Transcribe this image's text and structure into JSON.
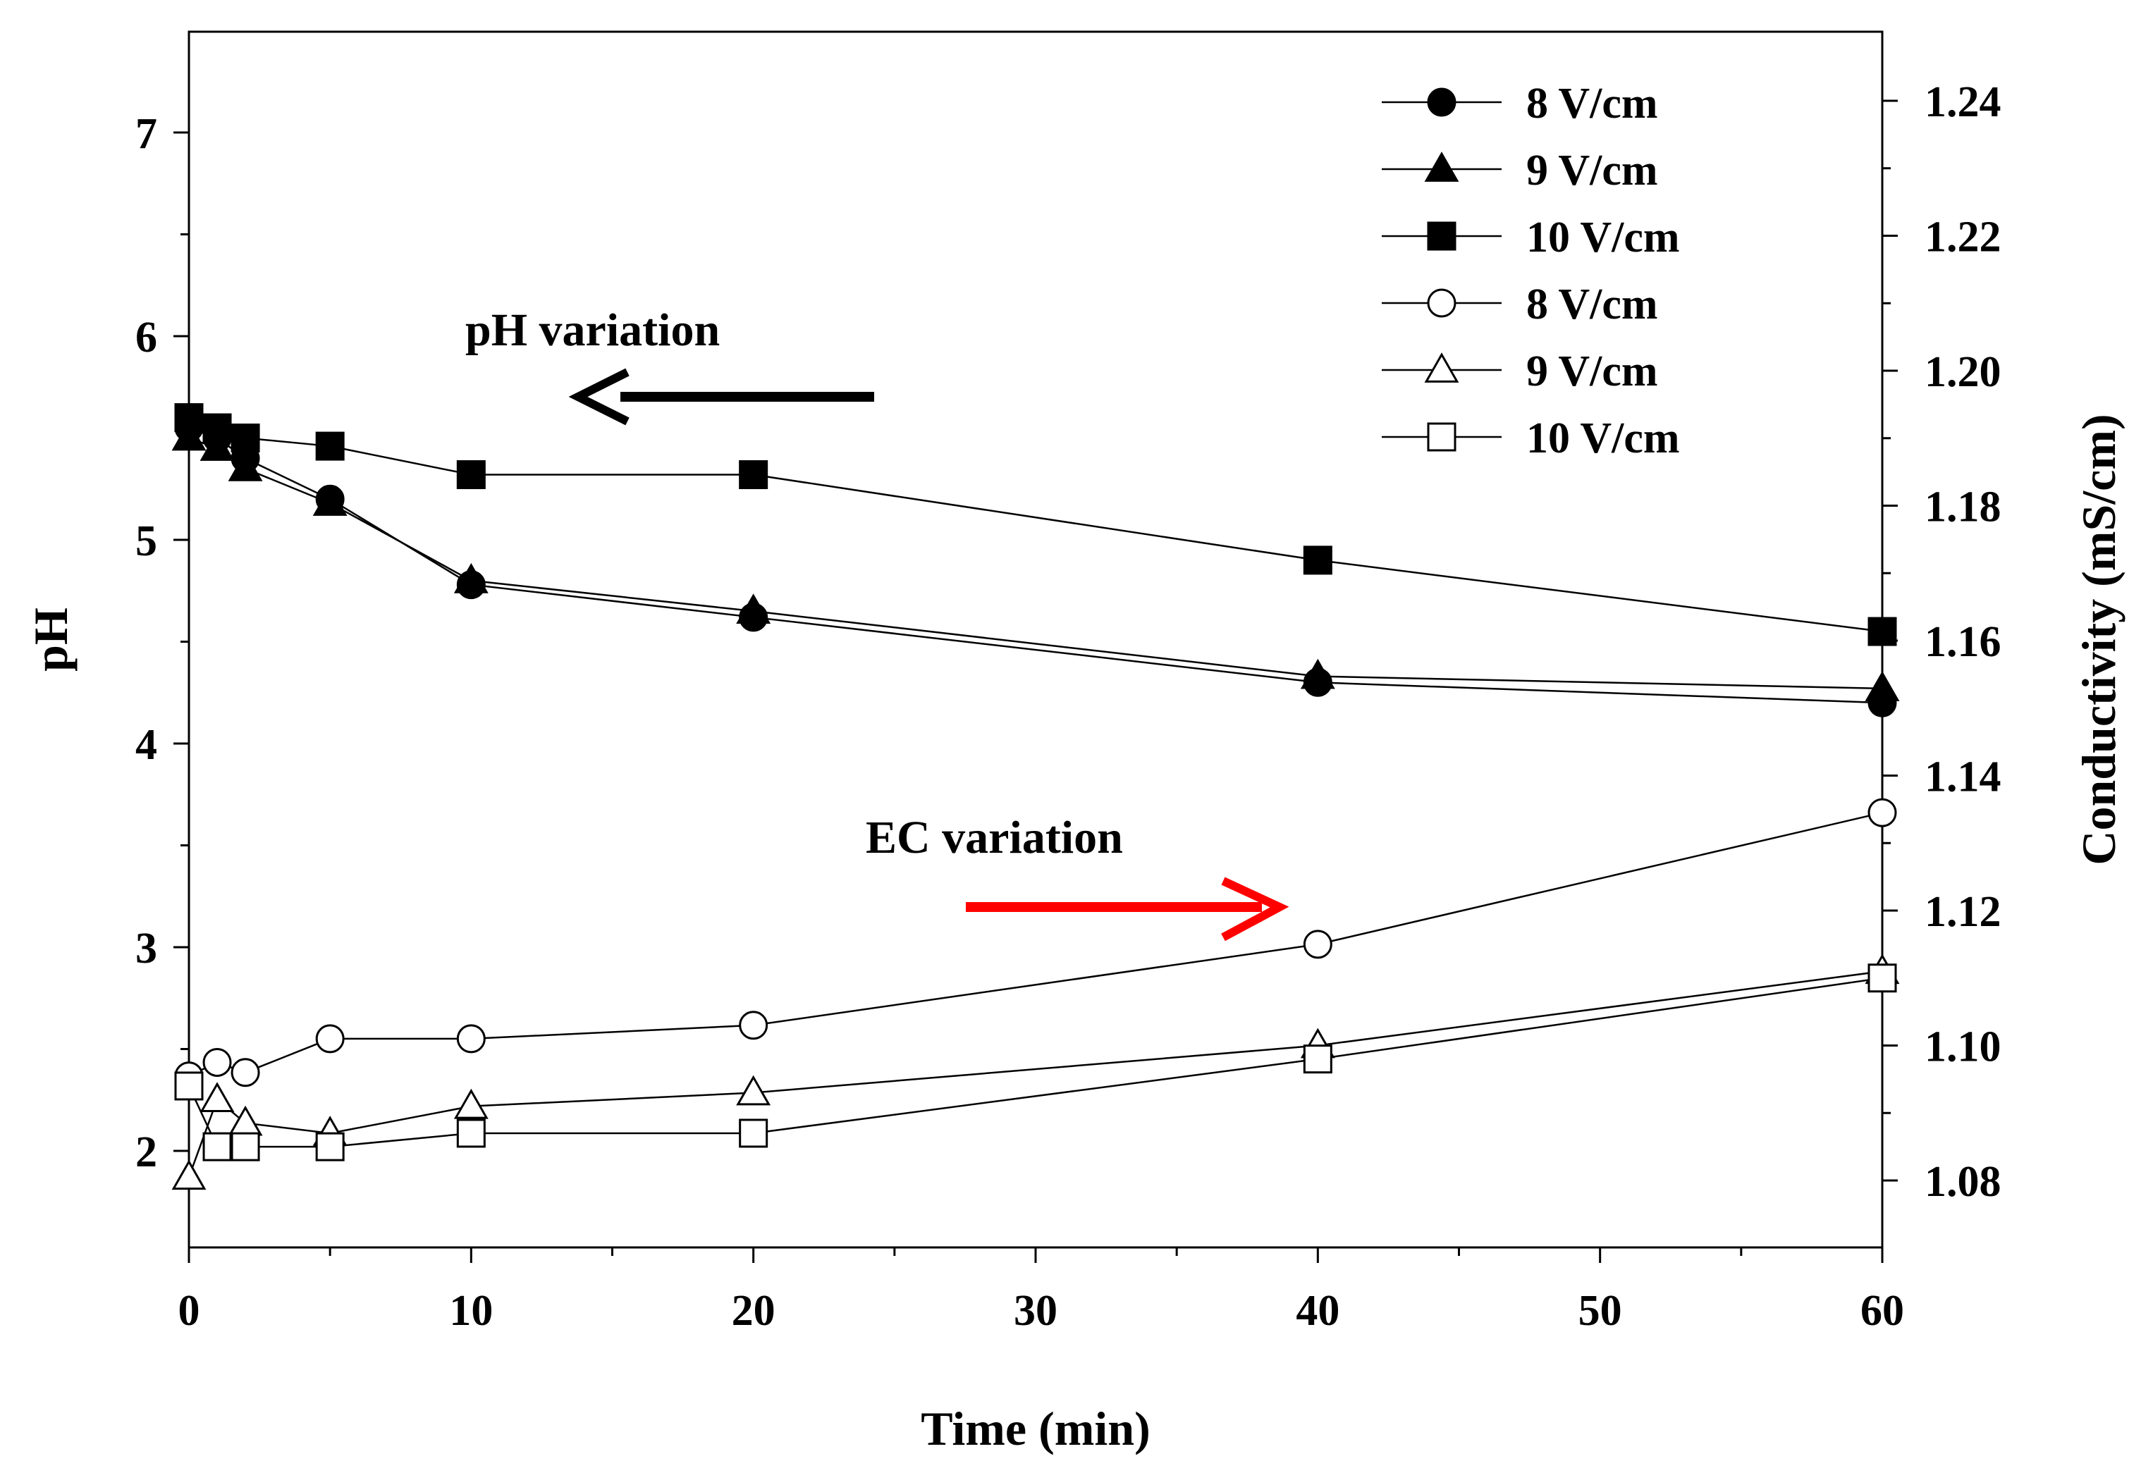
{
  "chart_data": {
    "type": "line",
    "xlabel": "Time (min)",
    "ylabel_left": "pH",
    "ylabel_right": "Conductivity (mS/cm)",
    "xlim": [
      0,
      60
    ],
    "ylim_left": [
      1.5,
      7.5
    ],
    "ylim_right": [
      1.07,
      1.25
    ],
    "x_ticks": [
      0,
      10,
      20,
      30,
      40,
      50,
      60
    ],
    "y_left_ticks": [
      2,
      3,
      4,
      5,
      6,
      7
    ],
    "y_right_ticks": [
      "1.08",
      "1.10",
      "1.12",
      "1.14",
      "1.16",
      "1.18",
      "1.20",
      "1.22",
      "1.24"
    ],
    "series": [
      {
        "name": "8 V/cm",
        "axis": "left",
        "marker": "circle",
        "filled": true,
        "x": [
          0,
          1,
          2,
          5,
          10,
          20,
          40,
          60
        ],
        "values": [
          5.55,
          5.5,
          5.4,
          5.2,
          4.78,
          4.62,
          4.3,
          4.2
        ]
      },
      {
        "name": "9 V/cm",
        "axis": "left",
        "marker": "triangle",
        "filled": true,
        "x": [
          0,
          1,
          2,
          5,
          10,
          20,
          40,
          60
        ],
        "values": [
          5.5,
          5.45,
          5.35,
          5.18,
          4.8,
          4.65,
          4.33,
          4.27
        ]
      },
      {
        "name": "10 V/cm",
        "axis": "left",
        "marker": "square",
        "filled": true,
        "x": [
          0,
          1,
          2,
          5,
          10,
          20,
          40,
          60
        ],
        "values": [
          5.6,
          5.55,
          5.5,
          5.46,
          5.32,
          5.32,
          4.9,
          4.55
        ]
      },
      {
        "name": "8 V/cm",
        "axis": "right",
        "marker": "circle",
        "filled": false,
        "x": [
          0,
          1,
          2,
          5,
          10,
          20,
          40,
          60
        ],
        "values": [
          1.0955,
          1.0975,
          1.096,
          1.101,
          1.101,
          1.103,
          1.115,
          1.1345
        ]
      },
      {
        "name": "9 V/cm",
        "axis": "right",
        "marker": "triangle",
        "filled": false,
        "x": [
          0,
          1,
          2,
          5,
          10,
          20,
          40,
          60
        ],
        "values": [
          1.0805,
          1.092,
          1.0885,
          1.087,
          1.091,
          1.093,
          1.1,
          1.111
        ]
      },
      {
        "name": "10 V/cm",
        "axis": "right",
        "marker": "square",
        "filled": false,
        "x": [
          0,
          1,
          2,
          5,
          10,
          20,
          40,
          60
        ],
        "values": [
          1.094,
          1.085,
          1.085,
          1.085,
          1.087,
          1.087,
          1.098,
          1.11
        ]
      }
    ],
    "annotations": [
      {
        "text": "pH variation",
        "arrow_color": "#000000",
        "arrow_direction": "left"
      },
      {
        "text": "EC variation",
        "arrow_color": "#ff0000",
        "arrow_direction": "right"
      }
    ],
    "legend_position": "top-right",
    "grid": false
  }
}
